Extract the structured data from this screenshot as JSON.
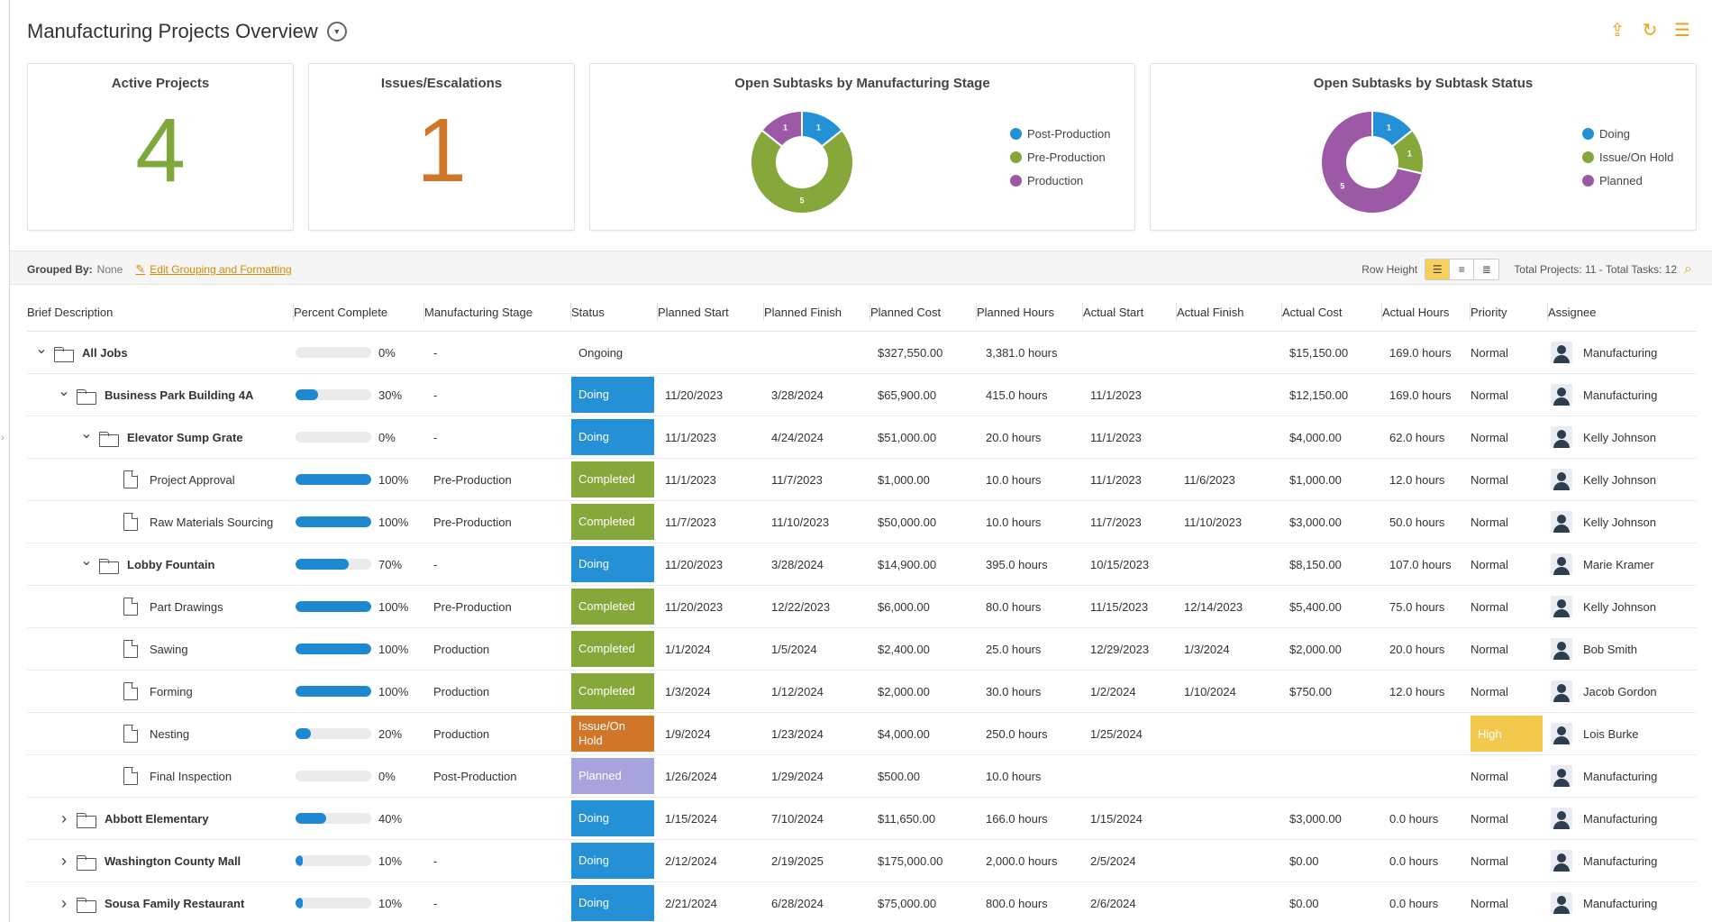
{
  "header": {
    "title": "Manufacturing Projects Overview"
  },
  "icons": {
    "upload": "cloud-upload-icon",
    "refresh": "refresh-icon",
    "list": "list-icon",
    "accent": "#e8a317"
  },
  "cards": {
    "active": {
      "title": "Active Projects",
      "value": "4",
      "color": "#7fa83a"
    },
    "issues": {
      "title": "Issues/Escalations",
      "value": "1",
      "color": "#cf7628"
    },
    "stage": {
      "title": "Open Subtasks by Manufacturing Stage",
      "chart_data": {
        "type": "pie",
        "title": "Open Subtasks by Manufacturing Stage",
        "slices": [
          {
            "name": "Post-Production",
            "value": 1,
            "color": "#2490d6"
          },
          {
            "name": "Pre-Production",
            "value": 5,
            "color": "#86a83a"
          },
          {
            "name": "Production",
            "value": 1,
            "color": "#9b59a6"
          }
        ],
        "legend_position": "right"
      }
    },
    "status": {
      "title": "Open Subtasks by Subtask Status",
      "chart_data": {
        "type": "pie",
        "title": "Open Subtasks by Subtask Status",
        "slices": [
          {
            "name": "Doing",
            "value": 1,
            "color": "#2490d6"
          },
          {
            "name": "Issue/On Hold",
            "value": 1,
            "color": "#86a83a"
          },
          {
            "name": "Planned",
            "value": 5,
            "color": "#9b59a6"
          }
        ],
        "legend_position": "right"
      }
    }
  },
  "toolbar": {
    "grouped_by_label": "Grouped By:",
    "grouped_by_value": "None",
    "edit_link": "Edit Grouping and Formatting",
    "row_height_label": "Row Height",
    "totals": "Total Projects: 11 - Total Tasks: 12"
  },
  "columns": [
    "Brief Description",
    "Percent Complete",
    "Manufacturing Stage",
    "Status",
    "Planned Start",
    "Planned Finish",
    "Planned Cost",
    "Planned Hours",
    "Actual Start",
    "Actual Finish",
    "Actual Cost",
    "Actual Hours",
    "Priority",
    "Assignee"
  ],
  "rows": [
    {
      "level": 0,
      "type": "folder",
      "caret": "down",
      "bold": true,
      "name": "All Jobs",
      "pct": 0,
      "pct_label": "0%",
      "stage": "-",
      "status": "Ongoing",
      "status_style": "text",
      "pstart": "",
      "pfinish": "",
      "pcost": "$327,550.00",
      "phours": "3,381.0 hours",
      "astart": "",
      "afinish": "",
      "acost": "$15,150.00",
      "ahours": "169.0 hours",
      "priority": "Normal",
      "assignee": "Manufacturing"
    },
    {
      "level": 1,
      "type": "folder",
      "caret": "down",
      "bold": true,
      "name": "Business Park Building 4A",
      "pct": 30,
      "pct_label": "30%",
      "stage": "-",
      "status": "Doing",
      "status_style": "doing",
      "pstart": "11/20/2023",
      "pfinish": "3/28/2024",
      "pcost": "$65,900.00",
      "phours": "415.0 hours",
      "astart": "11/1/2023",
      "afinish": "",
      "acost": "$12,150.00",
      "ahours": "169.0 hours",
      "priority": "Normal",
      "assignee": "Manufacturing"
    },
    {
      "level": 2,
      "type": "folder",
      "caret": "down",
      "bold": true,
      "name": "Elevator Sump Grate",
      "pct": 0,
      "pct_label": "0%",
      "stage": "-",
      "status": "Doing",
      "status_style": "doing",
      "pstart": "11/1/2023",
      "pfinish": "4/24/2024",
      "pcost": "$51,000.00",
      "phours": "20.0 hours",
      "astart": "11/1/2023",
      "afinish": "",
      "acost": "$4,000.00",
      "ahours": "62.0 hours",
      "priority": "Normal",
      "assignee": "Kelly Johnson"
    },
    {
      "level": 3,
      "type": "doc",
      "caret": "",
      "bold": false,
      "name": "Project Approval",
      "pct": 100,
      "pct_label": "100%",
      "stage": "Pre-Production",
      "status": "Completed",
      "status_style": "completed",
      "pstart": "11/1/2023",
      "pfinish": "11/7/2023",
      "pcost": "$1,000.00",
      "phours": "10.0 hours",
      "astart": "11/1/2023",
      "afinish": "11/6/2023",
      "acost": "$1,000.00",
      "ahours": "12.0 hours",
      "priority": "Normal",
      "assignee": "Kelly Johnson"
    },
    {
      "level": 3,
      "type": "doc",
      "caret": "",
      "bold": false,
      "name": "Raw Materials Sourcing",
      "pct": 100,
      "pct_label": "100%",
      "stage": "Pre-Production",
      "status": "Completed",
      "status_style": "completed",
      "pstart": "11/7/2023",
      "pfinish": "11/10/2023",
      "pcost": "$50,000.00",
      "phours": "10.0 hours",
      "astart": "11/7/2023",
      "afinish": "11/10/2023",
      "acost": "$3,000.00",
      "ahours": "50.0 hours",
      "priority": "Normal",
      "assignee": "Kelly Johnson"
    },
    {
      "level": 2,
      "type": "folder",
      "caret": "down",
      "bold": true,
      "name": "Lobby Fountain",
      "pct": 70,
      "pct_label": "70%",
      "stage": "-",
      "status": "Doing",
      "status_style": "doing",
      "pstart": "11/20/2023",
      "pfinish": "3/28/2024",
      "pcost": "$14,900.00",
      "phours": "395.0 hours",
      "astart": "10/15/2023",
      "afinish": "",
      "acost": "$8,150.00",
      "ahours": "107.0 hours",
      "priority": "Normal",
      "assignee": "Marie Kramer"
    },
    {
      "level": 3,
      "type": "doc",
      "caret": "",
      "bold": false,
      "name": "Part Drawings",
      "pct": 100,
      "pct_label": "100%",
      "stage": "Pre-Production",
      "status": "Completed",
      "status_style": "completed",
      "pstart": "11/20/2023",
      "pfinish": "12/22/2023",
      "pcost": "$6,000.00",
      "phours": "80.0 hours",
      "astart": "11/15/2023",
      "afinish": "12/14/2023",
      "acost": "$5,400.00",
      "ahours": "75.0 hours",
      "priority": "Normal",
      "assignee": "Kelly Johnson"
    },
    {
      "level": 3,
      "type": "doc",
      "caret": "",
      "bold": false,
      "name": "Sawing",
      "pct": 100,
      "pct_label": "100%",
      "stage": "Production",
      "status": "Completed",
      "status_style": "completed",
      "pstart": "1/1/2024",
      "pfinish": "1/5/2024",
      "pcost": "$2,400.00",
      "phours": "25.0 hours",
      "astart": "12/29/2023",
      "afinish": "1/3/2024",
      "acost": "$2,000.00",
      "ahours": "20.0 hours",
      "priority": "Normal",
      "assignee": "Bob Smith"
    },
    {
      "level": 3,
      "type": "doc",
      "caret": "",
      "bold": false,
      "name": "Forming",
      "pct": 100,
      "pct_label": "100%",
      "stage": "Production",
      "status": "Completed",
      "status_style": "completed",
      "pstart": "1/3/2024",
      "pfinish": "1/12/2024",
      "pcost": "$2,000.00",
      "phours": "30.0 hours",
      "astart": "1/2/2024",
      "afinish": "1/10/2024",
      "acost": "$750.00",
      "ahours": "12.0 hours",
      "priority": "Normal",
      "assignee": "Jacob Gordon"
    },
    {
      "level": 3,
      "type": "doc",
      "caret": "",
      "bold": false,
      "name": "Nesting",
      "pct": 20,
      "pct_label": "20%",
      "stage": "Production",
      "status": "Issue/On Hold",
      "status_style": "issue",
      "pstart": "1/9/2024",
      "pfinish": "1/23/2024",
      "pcost": "$4,000.00",
      "phours": "250.0 hours",
      "astart": "1/25/2024",
      "afinish": "",
      "acost": "",
      "ahours": "",
      "priority": "High",
      "assignee": "Lois Burke"
    },
    {
      "level": 3,
      "type": "doc",
      "caret": "",
      "bold": false,
      "name": "Final Inspection",
      "pct": 0,
      "pct_label": "0%",
      "stage": "Post-Production",
      "status": "Planned",
      "status_style": "planned",
      "pstart": "1/26/2024",
      "pfinish": "1/29/2024",
      "pcost": "$500.00",
      "phours": "10.0 hours",
      "astart": "",
      "afinish": "",
      "acost": "",
      "ahours": "",
      "priority": "Normal",
      "assignee": "Manufacturing"
    },
    {
      "level": 1,
      "type": "folder",
      "caret": "right",
      "bold": true,
      "name": "Abbott Elementary",
      "pct": 40,
      "pct_label": "40%",
      "stage": "",
      "status": "Doing",
      "status_style": "doing",
      "pstart": "1/15/2024",
      "pfinish": "7/10/2024",
      "pcost": "$11,650.00",
      "phours": "166.0 hours",
      "astart": "1/15/2024",
      "afinish": "",
      "acost": "$3,000.00",
      "ahours": "0.0 hours",
      "priority": "Normal",
      "assignee": "Manufacturing"
    },
    {
      "level": 1,
      "type": "folder",
      "caret": "right",
      "bold": true,
      "name": "Washington County Mall",
      "pct": 10,
      "pct_label": "10%",
      "stage": "-",
      "status": "Doing",
      "status_style": "doing",
      "pstart": "2/12/2024",
      "pfinish": "2/19/2025",
      "pcost": "$175,000.00",
      "phours": "2,000.0 hours",
      "astart": "2/5/2024",
      "afinish": "",
      "acost": "$0.00",
      "ahours": "0.0 hours",
      "priority": "Normal",
      "assignee": "Manufacturing"
    },
    {
      "level": 1,
      "type": "folder",
      "caret": "right",
      "bold": true,
      "name": "Sousa Family Restaurant",
      "pct": 10,
      "pct_label": "10%",
      "stage": "-",
      "status": "Doing",
      "status_style": "doing",
      "pstart": "2/21/2024",
      "pfinish": "6/28/2024",
      "pcost": "$75,000.00",
      "phours": "800.0 hours",
      "astart": "2/6/2024",
      "afinish": "",
      "acost": "$0.00",
      "ahours": "0.0 hours",
      "priority": "Normal",
      "assignee": "Manufacturing"
    }
  ]
}
